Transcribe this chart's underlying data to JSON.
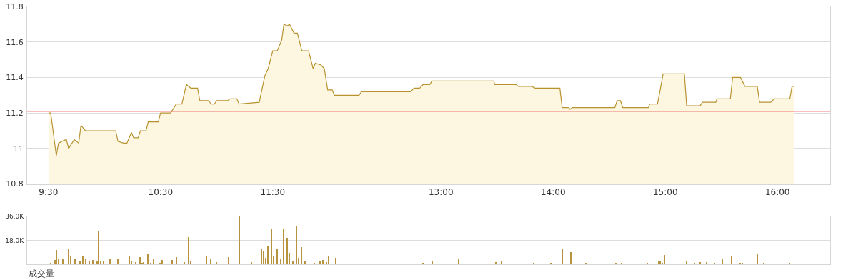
{
  "chart_data": [
    {
      "type": "area",
      "color": "#b8922e",
      "x": [
        9.5,
        9.52,
        9.535,
        9.57,
        9.59,
        9.62,
        9.66,
        9.68,
        9.73,
        9.77,
        9.79,
        9.83,
        10.1,
        10.12,
        10.17,
        10.2,
        10.24,
        10.26,
        10.3,
        10.32,
        10.37,
        10.39,
        10.48,
        10.5,
        10.59,
        10.64,
        10.69,
        10.73,
        10.77,
        10.83,
        10.85,
        10.93,
        10.95,
        10.98,
        11.0,
        11.1,
        11.12,
        11.18,
        11.2,
        11.38,
        11.43,
        11.46,
        11.5,
        11.54,
        11.58,
        11.6,
        11.63,
        11.65,
        11.69,
        11.72,
        11.76,
        11.82,
        11.86,
        11.88,
        11.93,
        11.96,
        11.99,
        12.03,
        12.05,
        12.27,
        12.29,
        12.73,
        12.76,
        12.81,
        12.84,
        12.9,
        12.92,
        13.47,
        13.48,
        13.67,
        13.69,
        13.81,
        13.84,
        14.06,
        14.08,
        14.14,
        14.15,
        14.17,
        14.55,
        14.57,
        14.6,
        14.62,
        14.85,
        14.86,
        14.93,
        14.96,
        14.98,
        15.17,
        15.19,
        15.21,
        15.31,
        15.33,
        15.45,
        15.46,
        15.58,
        15.6,
        15.67,
        15.71,
        15.82,
        15.84,
        15.94,
        15.97,
        16.11,
        16.13,
        16.15
      ],
      "values": [
        11.2,
        11.2,
        11.13,
        10.96,
        11.03,
        11.04,
        11.05,
        11.0,
        11.05,
        11.03,
        11.13,
        11.1,
        11.1,
        11.04,
        11.03,
        11.03,
        11.09,
        11.06,
        11.06,
        11.1,
        11.1,
        11.15,
        11.15,
        11.2,
        11.2,
        11.25,
        11.25,
        11.36,
        11.34,
        11.34,
        11.27,
        11.27,
        11.25,
        11.25,
        11.27,
        11.27,
        11.28,
        11.28,
        11.25,
        11.26,
        11.41,
        11.45,
        11.55,
        11.55,
        11.61,
        11.7,
        11.69,
        11.7,
        11.65,
        11.65,
        11.55,
        11.55,
        11.45,
        11.48,
        11.47,
        11.45,
        11.33,
        11.33,
        11.3,
        11.3,
        11.32,
        11.32,
        11.34,
        11.34,
        11.36,
        11.36,
        11.38,
        11.38,
        11.36,
        11.36,
        11.35,
        11.35,
        11.34,
        11.34,
        11.23,
        11.23,
        11.22,
        11.23,
        11.23,
        11.27,
        11.27,
        11.23,
        11.23,
        11.25,
        11.25,
        11.35,
        11.42,
        11.42,
        11.24,
        11.24,
        11.24,
        11.26,
        11.26,
        11.28,
        11.28,
        11.4,
        11.4,
        11.35,
        11.35,
        11.26,
        11.26,
        11.28,
        11.28,
        11.35,
        11.35
      ],
      "xlim": [
        9.31,
        16.47
      ],
      "xticks": [
        {
          "value": 9.5,
          "label": "9:30"
        },
        {
          "value": 10.5,
          "label": "10:30"
        },
        {
          "value": 11.5,
          "label": "11:30"
        },
        {
          "value": 13,
          "label": "13:00"
        },
        {
          "value": 14,
          "label": "14:00"
        },
        {
          "value": 15,
          "label": "15:00"
        },
        {
          "value": 16,
          "label": "16:00"
        }
      ],
      "ylim": [
        10.8,
        11.8
      ],
      "yticks": [
        10.8,
        11,
        11.2,
        11.4,
        11.6,
        11.8
      ],
      "ref_lines": [
        {
          "axis": "y",
          "value": 11.21,
          "color": "#e00000"
        }
      ],
      "grid": "y"
    },
    {
      "type": "bar",
      "color": "#b8933f",
      "xlabel": "成交量",
      "x": [
        9.5,
        9.52,
        9.54,
        9.557,
        9.572,
        9.59,
        9.61,
        9.627,
        9.645,
        9.66,
        9.68,
        9.7,
        9.72,
        9.74,
        9.756,
        9.774,
        9.79,
        9.81,
        9.83,
        9.846,
        9.864,
        9.9,
        9.916,
        9.934,
        9.95,
        9.97,
        9.99,
        10.007,
        10.025,
        10.05,
        10.12,
        10.17,
        10.188,
        10.206,
        10.224,
        10.242,
        10.26,
        10.28,
        10.317,
        10.335,
        10.35,
        10.39,
        10.41,
        10.44,
        10.46,
        10.495,
        10.514,
        10.55,
        10.606,
        10.624,
        10.64,
        10.676,
        10.695,
        10.71,
        10.73,
        10.75,
        10.77,
        10.84,
        10.91,
        10.95,
        11.0,
        11.11,
        11.2,
        11.22,
        11.31,
        11.4,
        11.42,
        11.437,
        11.455,
        11.47,
        11.49,
        11.51,
        11.54,
        11.57,
        11.6,
        11.63,
        11.65,
        11.68,
        11.71,
        11.73,
        11.76,
        11.79,
        11.87,
        11.89,
        11.92,
        11.95,
        11.98,
        12.0,
        12.06,
        12.17,
        12.25,
        12.3,
        12.38,
        12.46,
        12.52,
        12.57,
        12.63,
        12.68,
        12.71,
        12.76,
        12.84,
        12.92,
        13.16,
        13.49,
        13.54,
        13.69,
        13.83,
        13.89,
        13.94,
        13.96,
        13.98,
        14.08,
        14.12,
        14.16,
        14.175,
        14.29,
        14.56,
        14.61,
        14.63,
        14.84,
        14.87,
        14.94,
        14.956,
        14.974,
        14.992,
        15.17,
        15.19,
        15.26,
        15.31,
        15.35,
        15.37,
        15.44,
        15.51,
        15.59,
        15.67,
        15.69,
        15.82,
        15.84,
        15.88,
        15.95,
        16.11
      ],
      "values": [
        800,
        1000,
        600,
        3200,
        10800,
        3900,
        600,
        3900,
        600,
        600,
        11200,
        5900,
        600,
        4300,
        600,
        2800,
        2800,
        5900,
        4300,
        800,
        2200,
        3200,
        800,
        2600,
        25400,
        2200,
        2600,
        600,
        600,
        3900,
        3900,
        600,
        800,
        800,
        6300,
        2200,
        800,
        1600,
        5300,
        1200,
        1600,
        7500,
        1000,
        3900,
        600,
        1200,
        3200,
        600,
        3200,
        600,
        5300,
        600,
        600,
        1800,
        800,
        20700,
        2800,
        600,
        6300,
        4500,
        1600,
        5500,
        36000,
        600,
        1600,
        11200,
        9700,
        4900,
        13800,
        600,
        27000,
        5900,
        11200,
        3900,
        26400,
        20100,
        8500,
        2800,
        29000,
        4900,
        12800,
        2800,
        1000,
        600,
        2000,
        3200,
        1600,
        5900,
        4900,
        600,
        600,
        600,
        600,
        600,
        600,
        600,
        600,
        600,
        600,
        600,
        1200,
        2600,
        4500,
        1600,
        2200,
        600,
        1000,
        600,
        600,
        600,
        1200,
        11400,
        600,
        9100,
        600,
        1200,
        1000,
        1000,
        600,
        1000,
        600,
        2800,
        2800,
        1000,
        6900,
        600,
        2200,
        1200,
        1600,
        600,
        1600,
        1200,
        4500,
        6500,
        1200,
        1200,
        8100,
        600,
        1200,
        600,
        1200
      ],
      "xlim": [
        9.31,
        16.47
      ],
      "ylim": [
        0,
        36000
      ],
      "yticks": [
        {
          "value": 18000,
          "label": "18.0K"
        },
        {
          "value": 36000,
          "label": "36.0K"
        }
      ],
      "grid": "y",
      "tick_labels": "y"
    }
  ]
}
